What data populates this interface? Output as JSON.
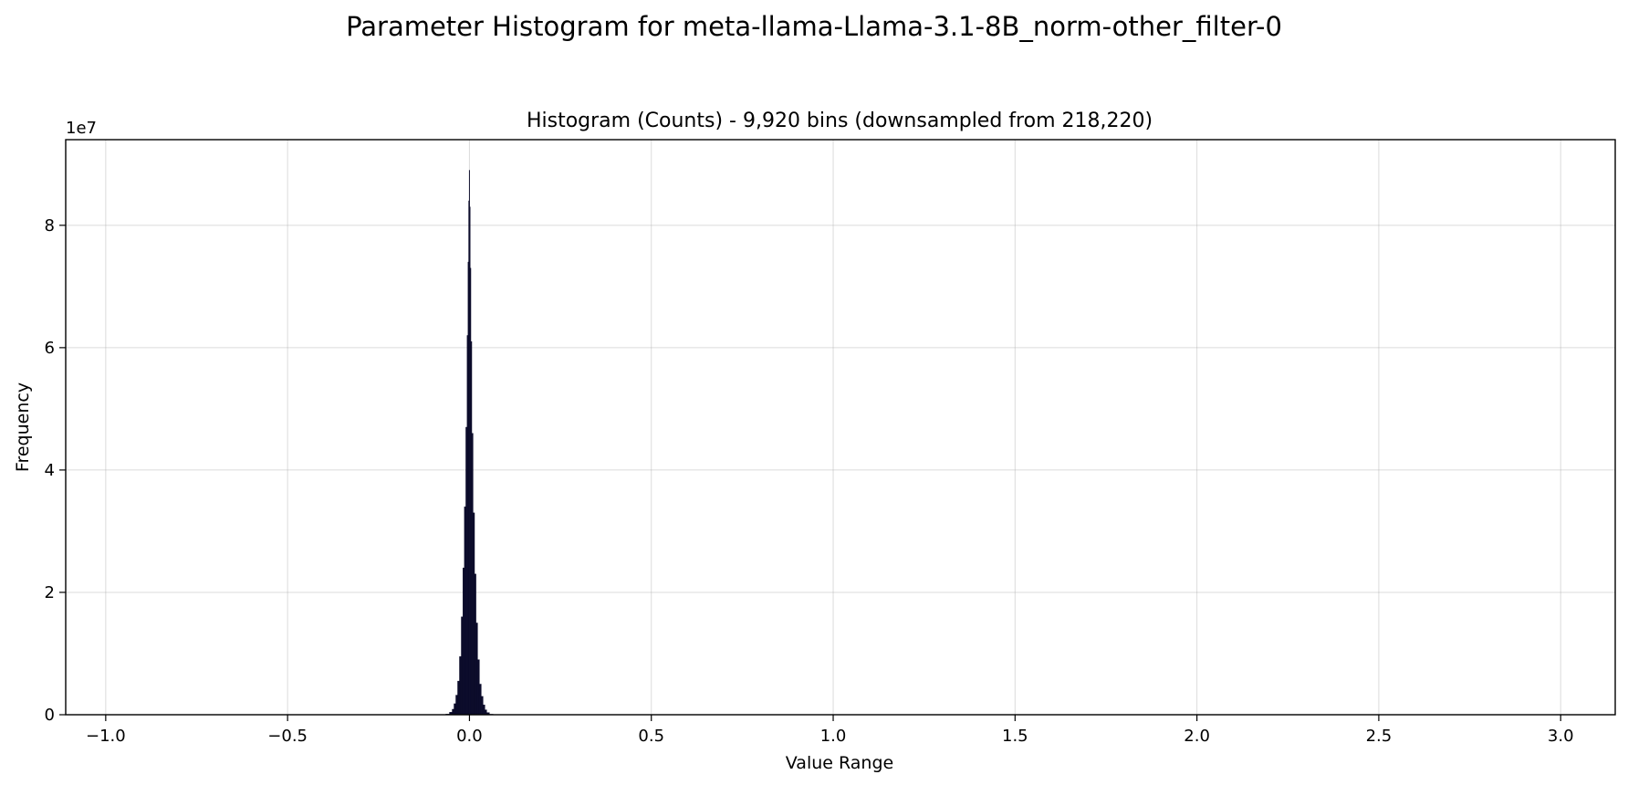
{
  "chart_data": {
    "type": "bar",
    "suptitle": "Parameter Histogram for meta-llama-Llama-3.1-8B_norm-other_filter-0",
    "title": "Histogram (Counts) - 9,920 bins (downsampled from 218,220)",
    "xlabel": "Value Range",
    "ylabel": "Frequency",
    "y_offset_label": "1e7",
    "xlim": [
      -1.11,
      3.15
    ],
    "ylim": [
      0,
      94000000
    ],
    "xticks": [
      -1.0,
      -0.5,
      0.0,
      0.5,
      1.0,
      1.5,
      2.0,
      2.5,
      3.0
    ],
    "xtick_labels": [
      "−1.0",
      "−0.5",
      "0.0",
      "0.5",
      "1.0",
      "1.5",
      "2.0",
      "2.5",
      "3.0"
    ],
    "yticks": [
      0,
      20000000,
      40000000,
      60000000,
      80000000
    ],
    "ytick_labels": [
      "0",
      "2",
      "4",
      "6",
      "8"
    ],
    "grid": true,
    "bar_color": "#0b0b2a",
    "x": [
      -0.06,
      -0.05,
      -0.045,
      -0.04,
      -0.035,
      -0.03,
      -0.025,
      -0.02,
      -0.016,
      -0.012,
      -0.008,
      -0.005,
      -0.003,
      -0.0015,
      0.0,
      0.0015,
      0.003,
      0.005,
      0.008,
      0.012,
      0.016,
      0.02,
      0.025,
      0.03,
      0.035,
      0.04,
      0.045,
      0.05,
      0.06
    ],
    "values": [
      100000,
      400000,
      900000,
      1800000,
      3200000,
      5500000,
      9500000,
      16000000,
      24000000,
      34000000,
      47000000,
      62000000,
      74000000,
      84000000,
      89000000,
      83000000,
      73000000,
      61000000,
      46000000,
      33000000,
      23000000,
      15000000,
      9000000,
      5000000,
      3000000,
      1600000,
      800000,
      350000,
      80000
    ]
  }
}
